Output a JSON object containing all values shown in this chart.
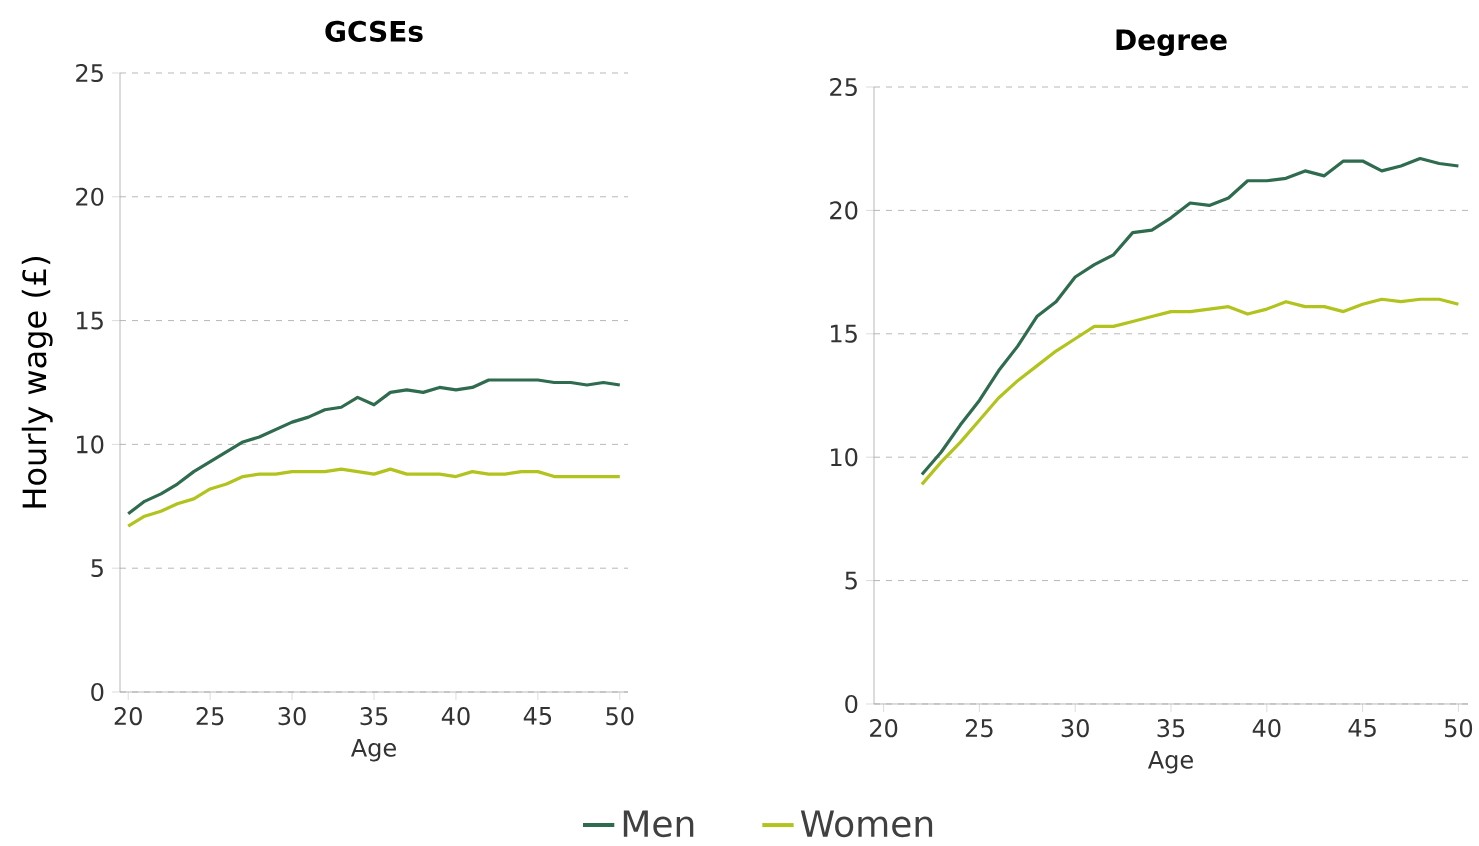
{
  "chart_data": [
    {
      "type": "line",
      "title": "GCSEs",
      "xlabel": "Age",
      "ylabel": "Hourly wage (£)",
      "x": [
        20,
        21,
        22,
        23,
        24,
        25,
        26,
        27,
        28,
        29,
        30,
        31,
        32,
        33,
        34,
        35,
        36,
        37,
        38,
        39,
        40,
        41,
        42,
        43,
        44,
        45,
        46,
        47,
        48,
        49,
        50
      ],
      "series": [
        {
          "name": "Men",
          "color": "#2f6b4e",
          "values": [
            7.2,
            7.7,
            8.0,
            8.4,
            8.9,
            9.3,
            9.7,
            10.1,
            10.3,
            10.6,
            10.9,
            11.1,
            11.4,
            11.5,
            11.9,
            11.6,
            12.1,
            12.2,
            12.1,
            12.3,
            12.2,
            12.3,
            12.6,
            12.6,
            12.6,
            12.6,
            12.5,
            12.5,
            12.4,
            12.5,
            12.4
          ]
        },
        {
          "name": "Women",
          "color": "#b2c31d",
          "values": [
            6.7,
            7.1,
            7.3,
            7.6,
            7.8,
            8.2,
            8.4,
            8.7,
            8.8,
            8.8,
            8.9,
            8.9,
            8.9,
            9.0,
            8.9,
            8.8,
            9.0,
            8.8,
            8.8,
            8.8,
            8.7,
            8.9,
            8.8,
            8.8,
            8.9,
            8.9,
            8.7,
            8.7,
            8.7,
            8.7,
            8.7
          ]
        }
      ],
      "xlim": [
        19.5,
        50.5
      ],
      "ylim": [
        0,
        25
      ],
      "xticks": [
        20,
        25,
        30,
        35,
        40,
        45,
        50
      ],
      "yticks": [
        0,
        5,
        10,
        15,
        20,
        25
      ],
      "grid": "y",
      "legend": "bottom"
    },
    {
      "type": "line",
      "title": "Degree",
      "xlabel": "Age",
      "x": [
        22,
        23,
        24,
        25,
        26,
        27,
        28,
        29,
        30,
        31,
        32,
        33,
        34,
        35,
        36,
        37,
        38,
        39,
        40,
        41,
        42,
        43,
        44,
        45,
        46,
        47,
        48,
        49,
        50
      ],
      "series": [
        {
          "color": "#2f6b4e",
          "values": [
            9.3,
            10.2,
            11.3,
            12.3,
            13.5,
            14.5,
            15.7,
            16.3,
            17.3,
            17.8,
            18.2,
            19.1,
            19.2,
            19.7,
            20.3,
            20.2,
            20.5,
            21.2,
            21.2,
            21.3,
            21.6,
            21.4,
            22.0,
            22.0,
            21.6,
            21.8,
            22.1,
            21.9,
            21.8
          ]
        },
        {
          "color": "#b2c31d",
          "values": [
            8.9,
            9.8,
            10.6,
            11.5,
            12.4,
            13.1,
            13.7,
            14.3,
            14.8,
            15.3,
            15.3,
            15.5,
            15.7,
            15.9,
            15.9,
            16.0,
            16.1,
            15.8,
            16.0,
            16.3,
            16.1,
            16.1,
            15.9,
            16.2,
            16.4,
            16.3,
            16.4,
            16.4,
            16.2
          ]
        }
      ],
      "xlim": [
        19.5,
        50.5
      ],
      "ylim": [
        0,
        25
      ],
      "xticks": [
        20,
        25,
        30,
        35,
        40,
        45,
        50
      ],
      "yticks": [
        0,
        5,
        10,
        15,
        20,
        25
      ],
      "grid": "y"
    }
  ]
}
